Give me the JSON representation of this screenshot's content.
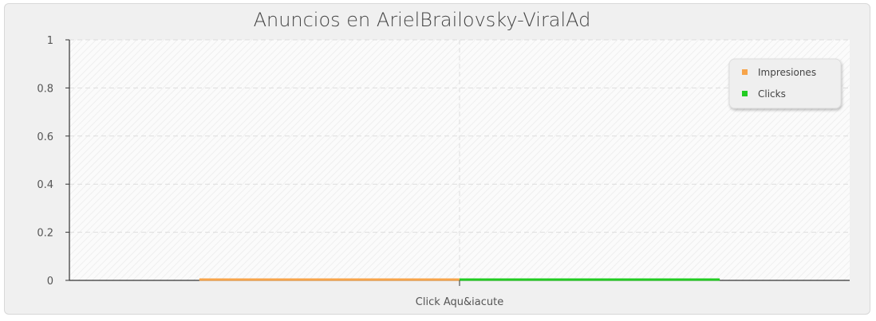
{
  "chart_data": {
    "type": "bar",
    "title": "Anuncios en ArielBrailovsky-ViralAd",
    "categories": [
      "Click Aqu&iacute"
    ],
    "series": [
      {
        "name": "Impresiones",
        "values": [
          0
        ],
        "color": "#f7a44a"
      },
      {
        "name": "Clicks",
        "values": [
          0
        ],
        "color": "#22cc22"
      }
    ],
    "ylim": [
      0,
      1
    ],
    "yticks": [
      "0",
      "0.2",
      "0.4",
      "0.6",
      "0.8",
      "1"
    ],
    "grid": true,
    "legend": "top-right"
  }
}
